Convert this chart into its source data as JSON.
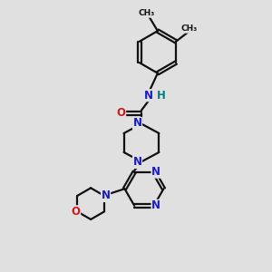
{
  "bg_color": "#e0e0e0",
  "bond_color": "#111111",
  "N_color": "#1a1acc",
  "O_color": "#cc1a1a",
  "H_color": "#008080",
  "line_width": 1.6,
  "font_size": 8.5,
  "canvas_xlim": [
    0,
    10
  ],
  "canvas_ylim": [
    0,
    10
  ]
}
